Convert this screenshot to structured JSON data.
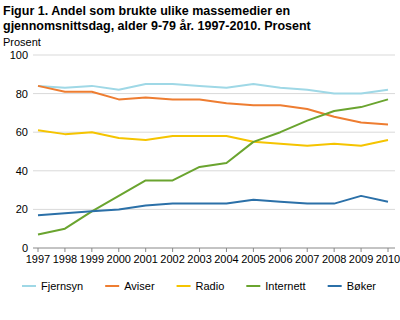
{
  "chart_data": {
    "type": "line",
    "title": "Figur 1. Andel som brukte ulike massemedier en gjennomsnittsdag, alder 9-79 år. 1997-2010. Prosent",
    "y_label": "Prosent",
    "categories": [
      "1997",
      "1998",
      "1999",
      "2000",
      "2001",
      "2002",
      "2003",
      "2004",
      "2005",
      "2006",
      "2007",
      "2008",
      "2009",
      "2010"
    ],
    "series": [
      {
        "name": "Fjernsyn",
        "color": "#9fd8e6",
        "values": [
          84,
          83,
          84,
          82,
          85,
          85,
          84,
          83,
          85,
          83,
          82,
          80,
          80,
          82
        ]
      },
      {
        "name": "Aviser",
        "color": "#ee7d31",
        "values": [
          84,
          81,
          81,
          77,
          78,
          77,
          77,
          75,
          74,
          74,
          72,
          68,
          65,
          64
        ]
      },
      {
        "name": "Radio",
        "color": "#f5c400",
        "values": [
          61,
          59,
          60,
          57,
          56,
          58,
          58,
          58,
          55,
          54,
          53,
          54,
          53,
          56
        ]
      },
      {
        "name": "Internett",
        "color": "#6aa42f",
        "values": [
          7,
          10,
          19,
          27,
          35,
          35,
          42,
          44,
          55,
          60,
          66,
          71,
          73,
          77
        ]
      },
      {
        "name": "Bøker",
        "color": "#2b70a8",
        "values": [
          17,
          18,
          19,
          20,
          22,
          23,
          23,
          23,
          25,
          24,
          23,
          23,
          27,
          24
        ]
      }
    ],
    "ylim": [
      0,
      100
    ],
    "yticks": [
      0,
      20,
      40,
      60,
      80,
      100
    ],
    "grid": true,
    "legend": "bottom"
  }
}
